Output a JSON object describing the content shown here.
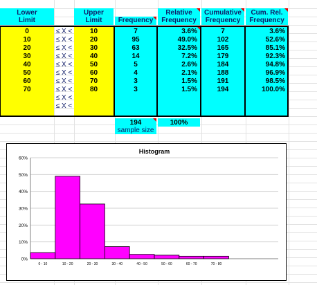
{
  "headers": {
    "lower_limit": [
      "Lower",
      "Limit"
    ],
    "upper_limit": [
      "Upper",
      "Limit"
    ],
    "frequency": "Frequency",
    "relative_frequency": [
      "Relative",
      "Frequency"
    ],
    "cumulative_frequency": [
      "Cumulative",
      "Frequency"
    ],
    "cum_rel_frequency": [
      "Cum. Rel.",
      "Frequency"
    ]
  },
  "rows": [
    {
      "lower": "0",
      "op": "≤ X <",
      "upper": "10",
      "freq": "7",
      "rel": "3.6%",
      "cum": "7",
      "cumrel": "3.6%"
    },
    {
      "lower": "10",
      "op": "≤ X <",
      "upper": "20",
      "freq": "95",
      "rel": "49.0%",
      "cum": "102",
      "cumrel": "52.6%"
    },
    {
      "lower": "20",
      "op": "≤ X <",
      "upper": "30",
      "freq": "63",
      "rel": "32.5%",
      "cum": "165",
      "cumrel": "85.1%"
    },
    {
      "lower": "30",
      "op": "≤ X <",
      "upper": "40",
      "freq": "14",
      "rel": "7.2%",
      "cum": "179",
      "cumrel": "92.3%"
    },
    {
      "lower": "40",
      "op": "≤ X <",
      "upper": "50",
      "freq": "5",
      "rel": "2.6%",
      "cum": "184",
      "cumrel": "94.8%"
    },
    {
      "lower": "50",
      "op": "≤ X <",
      "upper": "60",
      "freq": "4",
      "rel": "2.1%",
      "cum": "188",
      "cumrel": "96.9%"
    },
    {
      "lower": "60",
      "op": "≤ X <",
      "upper": "70",
      "freq": "3",
      "rel": "1.5%",
      "cum": "191",
      "cumrel": "98.5%"
    },
    {
      "lower": "70",
      "op": "≤ X <",
      "upper": "80",
      "freq": "3",
      "rel": "1.5%",
      "cum": "194",
      "cumrel": "100.0%"
    },
    {
      "lower": "",
      "op": "≤ X <",
      "upper": "",
      "freq": "",
      "rel": "",
      "cum": "",
      "cumrel": ""
    },
    {
      "lower": "",
      "op": "≤ X <",
      "upper": "",
      "freq": "",
      "rel": "",
      "cum": "",
      "cumrel": ""
    }
  ],
  "totals": {
    "frequency": "194",
    "sample_size_label": "sample size",
    "relative": "100%"
  },
  "colors": {
    "header_bg": "#00ffff",
    "lower_bg": "#ffff00",
    "bar_fill": "#ff00ff",
    "comment_marker": "#e00000"
  },
  "chart_data": {
    "type": "bar",
    "title": "Histogram",
    "categories": [
      "0 - 10",
      "10 - 20",
      "20 - 30",
      "30 - 40",
      "40 - 50",
      "50 - 60",
      "60 - 70",
      "70 - 80",
      "",
      ""
    ],
    "values": [
      3.6,
      49.0,
      32.5,
      7.2,
      2.6,
      2.1,
      1.5,
      1.5,
      0,
      0
    ],
    "y_ticks": [
      "0%",
      "10%",
      "20%",
      "30%",
      "40%",
      "50%",
      "60%"
    ],
    "ylim": [
      0,
      60
    ],
    "grid": true,
    "legend": "none"
  }
}
